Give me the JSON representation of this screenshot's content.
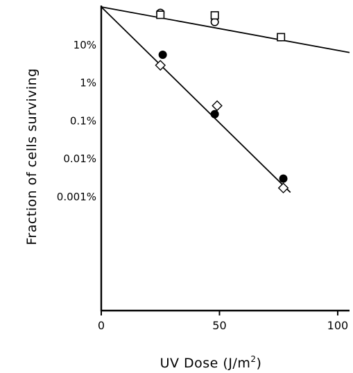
{
  "chart_data": {
    "type": "scatter",
    "xlabel": "UV Dose (J/m",
    "xlabel_superscript": "2",
    "xlabel_close": ")",
    "ylabel": "Fraction of cells surviving",
    "y_scale": "log",
    "xlim": [
      0,
      105
    ],
    "ylim_percent": [
      1e-06,
      100
    ],
    "x_ticks": [
      {
        "value": 0,
        "label": "0"
      },
      {
        "value": 50,
        "label": "50"
      },
      {
        "value": 100,
        "label": "100"
      }
    ],
    "y_ticks": [
      {
        "value": 10,
        "label": "10%"
      },
      {
        "value": 1,
        "label": "1%"
      },
      {
        "value": 0.1,
        "label": "0.1%"
      },
      {
        "value": 0.01,
        "label": "0.01%"
      },
      {
        "value": 0.001,
        "label": "0.001%"
      }
    ],
    "grid": false,
    "series": [
      {
        "marker": "open-circle",
        "points": [
          {
            "x": 25,
            "y": 70
          },
          {
            "x": 48,
            "y": 40
          },
          {
            "x": 76,
            "y": 16
          }
        ]
      },
      {
        "marker": "open-square",
        "points": [
          {
            "x": 25,
            "y": 62
          },
          {
            "x": 48,
            "y": 60
          },
          {
            "x": 76,
            "y": 16
          }
        ]
      },
      {
        "marker": "filled-circle",
        "points": [
          {
            "x": 26,
            "y": 5.5
          },
          {
            "x": 48,
            "y": 0.15
          },
          {
            "x": 77,
            "y": 0.003
          }
        ]
      },
      {
        "marker": "open-diamond",
        "points": [
          {
            "x": 25,
            "y": 2.9
          },
          {
            "x": 49,
            "y": 0.25
          },
          {
            "x": 77,
            "y": 0.0017
          }
        ]
      }
    ],
    "fit_lines": [
      {
        "from": {
          "x": 0,
          "y": 100
        },
        "to": {
          "x": 105,
          "y": 6.3
        }
      },
      {
        "from": {
          "x": 0,
          "y": 100
        },
        "to": {
          "x": 80,
          "y": 0.0013
        }
      }
    ]
  }
}
